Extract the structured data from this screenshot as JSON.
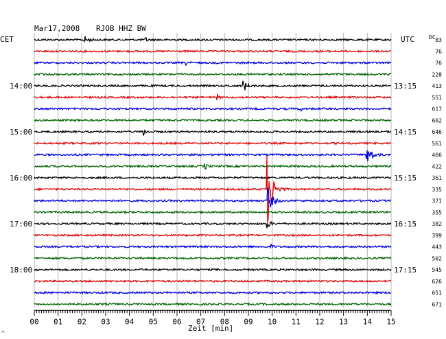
{
  "header": {
    "date": "Mar17,2008",
    "station": "RJOB HHZ BW",
    "left_timezone": "CET",
    "right_timezone": "UTC",
    "dc_label": "DC"
  },
  "footer": {
    "xlabel": "Zeit [min]",
    "corner_mark": "^"
  },
  "chart_data": {
    "type": "line",
    "title": "Mar17,2008 RJOB HHZ BW",
    "xlabel": "Zeit [min]",
    "xlim": [
      0,
      15
    ],
    "x_ticks": [
      "00",
      "01",
      "02",
      "03",
      "04",
      "05",
      "06",
      "07",
      "08",
      "09",
      "10",
      "11",
      "12",
      "13",
      "14",
      "15"
    ],
    "trace_colors": [
      "#000000",
      "#e00000",
      "#0000e0",
      "#006400"
    ],
    "left_hour_labels": [
      {
        "trace": 4,
        "label": "14:00"
      },
      {
        "trace": 8,
        "label": "15:00"
      },
      {
        "trace": 12,
        "label": "16:00"
      },
      {
        "trace": 16,
        "label": "17:00"
      },
      {
        "trace": 20,
        "label": "18:00"
      }
    ],
    "right_hour_labels": [
      {
        "trace": 4,
        "label": "13:15"
      },
      {
        "trace": 8,
        "label": "14:15"
      },
      {
        "trace": 12,
        "label": "15:15"
      },
      {
        "trace": 16,
        "label": "16:15"
      },
      {
        "trace": 20,
        "label": "17:15"
      }
    ],
    "dc_values": [
      "83",
      "76",
      "76",
      "228",
      "413",
      "551",
      "617",
      "662",
      "646",
      "561",
      "466",
      "422",
      "361",
      "335",
      "371",
      "355",
      "382",
      "399",
      "443",
      "502",
      "545",
      "626",
      "651",
      "671"
    ],
    "events": [
      {
        "trace": 0,
        "minute": 2.1,
        "amplitude": 0.35,
        "duration": 0.8
      },
      {
        "trace": 0,
        "minute": 4.7,
        "amplitude": 0.2,
        "duration": 0.4
      },
      {
        "trace": 2,
        "minute": 6.4,
        "amplitude": 0.25,
        "duration": 0.4
      },
      {
        "trace": 4,
        "minute": 8.8,
        "amplitude": 0.6,
        "duration": 0.6
      },
      {
        "trace": 5,
        "minute": 7.7,
        "amplitude": 0.3,
        "duration": 0.3
      },
      {
        "trace": 6,
        "minute": 11.2,
        "amplitude": 0.2,
        "duration": 0.3
      },
      {
        "trace": 8,
        "minute": 4.6,
        "amplitude": 0.35,
        "duration": 0.4
      },
      {
        "trace": 10,
        "minute": 14.0,
        "amplitude": 1.1,
        "duration": 0.8
      },
      {
        "trace": 11,
        "minute": 7.2,
        "amplitude": 0.3,
        "duration": 0.3
      },
      {
        "trace": 13,
        "minute": 9.8,
        "amplitude": 4.0,
        "duration": 0.9
      },
      {
        "trace": 14,
        "minute": 9.8,
        "amplitude": 1.5,
        "duration": 0.8
      },
      {
        "trace": 16,
        "minute": 9.8,
        "amplitude": 0.5,
        "duration": 0.5
      },
      {
        "trace": 18,
        "minute": 10.0,
        "amplitude": 0.25,
        "duration": 0.3
      }
    ]
  }
}
